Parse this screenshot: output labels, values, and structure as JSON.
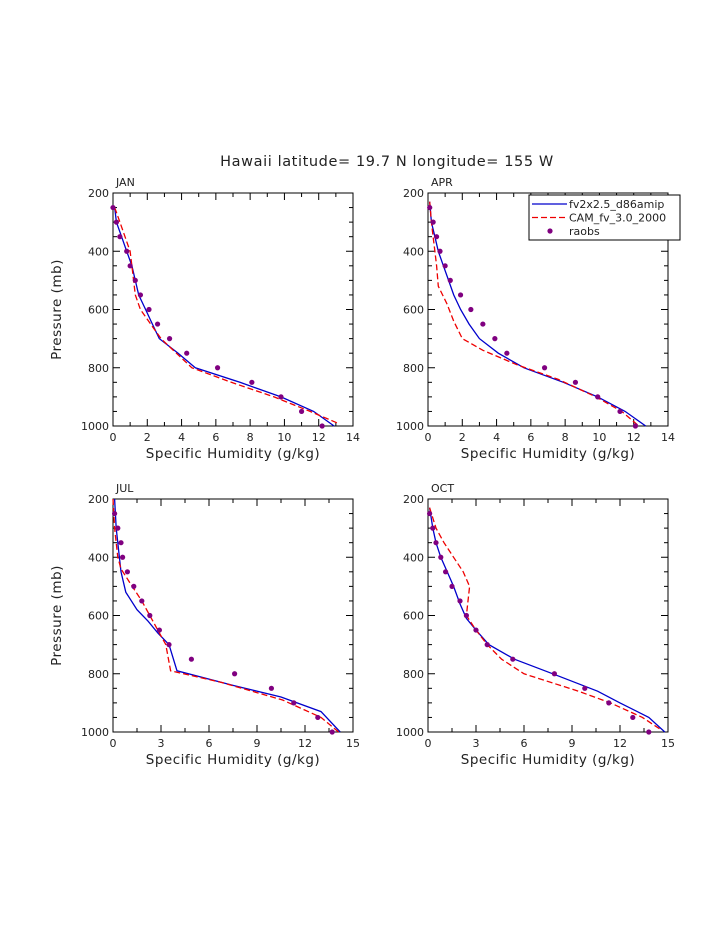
{
  "title": "Hawaii  latitude= 19.7 N longitude= 155 W",
  "colors": {
    "model1": "#0000cc",
    "model2": "#ee0000",
    "obs": "#800080",
    "frame": "#000000"
  },
  "legend": {
    "placement": "top-right (APR panel)",
    "entries": [
      {
        "label": "fv2x2.5_d86amip",
        "style": "solid",
        "color": "#0000cc"
      },
      {
        "label": "CAM_fv_3.0_2000",
        "style": "dashed",
        "color": "#ee0000"
      },
      {
        "label": "raobs",
        "style": "dot",
        "color": "#800080"
      }
    ]
  },
  "chart_data": [
    {
      "type": "line",
      "panel": "JAN",
      "xlabel": "Specific Humidity (g/kg)",
      "ylabel": "Pressure (mb)",
      "xlim": [
        0,
        14
      ],
      "xticks": [
        0,
        2,
        4,
        6,
        8,
        10,
        12,
        14
      ],
      "ylim": [
        1000,
        200
      ],
      "yticks": [
        200,
        400,
        600,
        800,
        1000
      ],
      "series": [
        {
          "name": "fv2x2.5_d86amip",
          "points": [
            [
              0.1,
              250
            ],
            [
              0.2,
              300
            ],
            [
              0.5,
              350
            ],
            [
              0.8,
              400
            ],
            [
              1.1,
              450
            ],
            [
              1.3,
              500
            ],
            [
              1.5,
              550
            ],
            [
              1.9,
              600
            ],
            [
              2.3,
              650
            ],
            [
              2.7,
              700
            ],
            [
              3.8,
              750
            ],
            [
              4.8,
              800
            ],
            [
              7.4,
              850
            ],
            [
              9.8,
              900
            ],
            [
              11.7,
              950
            ],
            [
              12.9,
              1000
            ]
          ]
        },
        {
          "name": "CAM_fv_3.0_2000",
          "points": [
            [
              0.1,
              250
            ],
            [
              0.4,
              300
            ],
            [
              0.7,
              350
            ],
            [
              1.0,
              400
            ],
            [
              1.1,
              450
            ],
            [
              1.2,
              500
            ],
            [
              1.3,
              550
            ],
            [
              1.6,
              600
            ],
            [
              2.2,
              650
            ],
            [
              2.8,
              700
            ],
            [
              3.7,
              750
            ],
            [
              4.6,
              800
            ],
            [
              6.9,
              850
            ],
            [
              9.4,
              900
            ],
            [
              11.5,
              950
            ],
            [
              13.1,
              990
            ]
          ]
        },
        {
          "name": "raobs",
          "points": [
            [
              0.0,
              250
            ],
            [
              0.2,
              300
            ],
            [
              0.4,
              350
            ],
            [
              0.8,
              400
            ],
            [
              1.0,
              450
            ],
            [
              1.3,
              500
            ],
            [
              1.6,
              550
            ],
            [
              2.1,
              600
            ],
            [
              2.6,
              650
            ],
            [
              3.3,
              700
            ],
            [
              4.3,
              750
            ],
            [
              6.1,
              800
            ],
            [
              8.1,
              850
            ],
            [
              9.8,
              900
            ],
            [
              11.0,
              950
            ],
            [
              12.2,
              1000
            ]
          ]
        }
      ]
    },
    {
      "type": "line",
      "panel": "APR",
      "xlabel": "Specific Humidity (g/kg)",
      "ylabel": "",
      "xlim": [
        0,
        14
      ],
      "xticks": [
        0,
        2,
        4,
        6,
        8,
        10,
        12,
        14
      ],
      "ylim": [
        1000,
        200
      ],
      "yticks": [
        200,
        400,
        600,
        800,
        1000
      ],
      "series": [
        {
          "name": "fv2x2.5_d86amip",
          "points": [
            [
              0.1,
              230
            ],
            [
              0.2,
              300
            ],
            [
              0.4,
              350
            ],
            [
              0.6,
              400
            ],
            [
              0.9,
              450
            ],
            [
              1.2,
              500
            ],
            [
              1.5,
              550
            ],
            [
              1.9,
              600
            ],
            [
              2.4,
              650
            ],
            [
              3.0,
              700
            ],
            [
              4.1,
              750
            ],
            [
              5.6,
              800
            ],
            [
              7.9,
              850
            ],
            [
              9.9,
              900
            ],
            [
              11.5,
              950
            ],
            [
              12.7,
              1000
            ]
          ]
        },
        {
          "name": "CAM_fv_3.0_2000",
          "points": [
            [
              0.1,
              230
            ],
            [
              0.2,
              300
            ],
            [
              0.3,
              350
            ],
            [
              0.4,
              400
            ],
            [
              0.5,
              450
            ],
            [
              0.6,
              520
            ],
            [
              1.1,
              580
            ],
            [
              1.5,
              640
            ],
            [
              2.0,
              700
            ],
            [
              3.2,
              740
            ],
            [
              5.2,
              790
            ],
            [
              7.6,
              840
            ],
            [
              9.8,
              900
            ],
            [
              11.3,
              950
            ],
            [
              12.3,
              1000
            ]
          ]
        },
        {
          "name": "raobs",
          "points": [
            [
              0.1,
              250
            ],
            [
              0.3,
              300
            ],
            [
              0.5,
              350
            ],
            [
              0.7,
              400
            ],
            [
              1.0,
              450
            ],
            [
              1.3,
              500
            ],
            [
              1.9,
              550
            ],
            [
              2.5,
              600
            ],
            [
              3.2,
              650
            ],
            [
              3.9,
              700
            ],
            [
              4.6,
              750
            ],
            [
              6.8,
              800
            ],
            [
              8.6,
              850
            ],
            [
              9.9,
              900
            ],
            [
              11.2,
              950
            ],
            [
              12.1,
              1000
            ]
          ]
        }
      ]
    },
    {
      "type": "line",
      "panel": "JUL",
      "xlabel": "Specific Humidity (g/kg)",
      "ylabel": "Pressure (mb)",
      "xlim": [
        0,
        15
      ],
      "xticks": [
        0,
        3,
        6,
        9,
        12,
        15
      ],
      "ylim": [
        1000,
        200
      ],
      "yticks": [
        200,
        400,
        600,
        800,
        1000
      ],
      "series": [
        {
          "name": "fv2x2.5_d86amip",
          "points": [
            [
              0.1,
              200
            ],
            [
              0.2,
              300
            ],
            [
              0.3,
              350
            ],
            [
              0.4,
              400
            ],
            [
              0.5,
              450
            ],
            [
              0.8,
              520
            ],
            [
              1.5,
              580
            ],
            [
              2.2,
              620
            ],
            [
              2.8,
              660
            ],
            [
              3.5,
              700
            ],
            [
              4.0,
              790
            ],
            [
              7.5,
              840
            ],
            [
              10.5,
              880
            ],
            [
              13.0,
              930
            ],
            [
              14.2,
              1000
            ]
          ]
        },
        {
          "name": "CAM_fv_3.0_2000",
          "points": [
            [
              0.0,
              200
            ],
            [
              0.1,
              300
            ],
            [
              0.2,
              350
            ],
            [
              0.3,
              400
            ],
            [
              0.5,
              440
            ],
            [
              1.2,
              500
            ],
            [
              1.8,
              550
            ],
            [
              2.3,
              600
            ],
            [
              2.8,
              650
            ],
            [
              3.3,
              700
            ],
            [
              3.6,
              790
            ],
            [
              6.8,
              830
            ],
            [
              10.6,
              890
            ],
            [
              13.0,
              950
            ],
            [
              14.1,
              1000
            ]
          ]
        },
        {
          "name": "raobs",
          "points": [
            [
              0.1,
              250
            ],
            [
              0.3,
              300
            ],
            [
              0.5,
              350
            ],
            [
              0.6,
              400
            ],
            [
              0.9,
              450
            ],
            [
              1.3,
              500
            ],
            [
              1.8,
              550
            ],
            [
              2.3,
              600
            ],
            [
              2.9,
              650
            ],
            [
              3.5,
              700
            ],
            [
              4.9,
              750
            ],
            [
              7.6,
              800
            ],
            [
              9.9,
              850
            ],
            [
              11.3,
              900
            ],
            [
              12.8,
              950
            ],
            [
              13.7,
              1000
            ]
          ]
        }
      ]
    },
    {
      "type": "line",
      "panel": "OCT",
      "xlabel": "Specific Humidity (g/kg)",
      "ylabel": "",
      "xlim": [
        0,
        15
      ],
      "xticks": [
        0,
        3,
        6,
        9,
        12,
        15
      ],
      "ylim": [
        1000,
        200
      ],
      "yticks": [
        200,
        400,
        600,
        800,
        1000
      ],
      "series": [
        {
          "name": "fv2x2.5_d86amip",
          "points": [
            [
              0.1,
              230
            ],
            [
              0.3,
              300
            ],
            [
              0.5,
              350
            ],
            [
              0.8,
              400
            ],
            [
              1.2,
              450
            ],
            [
              1.6,
              500
            ],
            [
              2.0,
              560
            ],
            [
              2.4,
              610
            ],
            [
              3.0,
              650
            ],
            [
              3.8,
              700
            ],
            [
              5.4,
              750
            ],
            [
              7.8,
              800
            ],
            [
              10.6,
              860
            ],
            [
              12.0,
              900
            ],
            [
              13.8,
              950
            ],
            [
              14.8,
              1000
            ]
          ]
        },
        {
          "name": "CAM_fv_3.0_2000",
          "points": [
            [
              0.1,
              230
            ],
            [
              0.5,
              300
            ],
            [
              1.0,
              350
            ],
            [
              1.6,
              400
            ],
            [
              2.2,
              450
            ],
            [
              2.6,
              500
            ],
            [
              2.4,
              600
            ],
            [
              3.0,
              650
            ],
            [
              3.7,
              700
            ],
            [
              4.6,
              750
            ],
            [
              6.0,
              800
            ],
            [
              9.4,
              860
            ],
            [
              11.4,
              900
            ],
            [
              13.4,
              950
            ],
            [
              14.5,
              990
            ]
          ]
        },
        {
          "name": "raobs",
          "points": [
            [
              0.1,
              250
            ],
            [
              0.3,
              300
            ],
            [
              0.5,
              350
            ],
            [
              0.8,
              400
            ],
            [
              1.1,
              450
            ],
            [
              1.5,
              500
            ],
            [
              2.0,
              550
            ],
            [
              2.4,
              600
            ],
            [
              3.0,
              650
            ],
            [
              3.7,
              700
            ],
            [
              5.3,
              750
            ],
            [
              7.9,
              800
            ],
            [
              9.8,
              850
            ],
            [
              11.3,
              900
            ],
            [
              12.8,
              950
            ],
            [
              13.8,
              1000
            ]
          ]
        }
      ]
    }
  ]
}
